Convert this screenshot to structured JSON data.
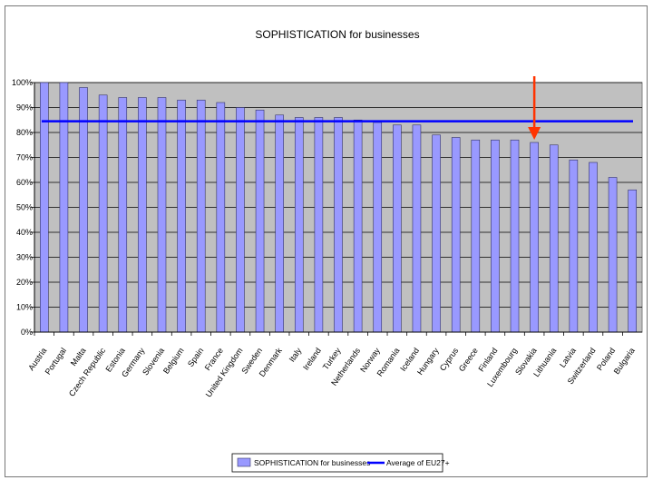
{
  "chart_data": {
    "type": "bar",
    "title": "SOPHISTICATION for businesses",
    "xlabel": "",
    "ylabel": "",
    "ylim": [
      0,
      100
    ],
    "yticks": [
      "0%",
      "10%",
      "20%",
      "30%",
      "40%",
      "50%",
      "60%",
      "70%",
      "80%",
      "90%",
      "100%"
    ],
    "grid": true,
    "legend_position": "bottom",
    "categories": [
      "Austria",
      "Portugal",
      "Malta",
      "Czech Republic",
      "Estonia",
      "Germany",
      "Slovenia",
      "Belgium",
      "Spain",
      "France",
      "United Kingdom",
      "Sweden",
      "Denmark",
      "Italy",
      "Ireland",
      "Turkey",
      "Netherlands",
      "Norway",
      "Romania",
      "Iceland",
      "Hungary",
      "Cyprus",
      "Greece",
      "Finland",
      "Luxembourg",
      "Slovakia",
      "Lithuania",
      "Latvia",
      "Switzerland",
      "Poland",
      "Bulgaria"
    ],
    "series": [
      {
        "name": "SOPHISTICATION for businesses",
        "kind": "bar",
        "color": "#9999ff",
        "values": [
          100,
          100,
          98,
          95,
          94,
          94,
          94,
          93,
          93,
          92,
          90,
          89,
          87,
          86,
          86,
          86,
          85,
          84,
          83,
          83,
          79,
          78,
          77,
          77,
          77,
          76,
          75,
          69,
          68,
          62,
          57
        ]
      },
      {
        "name": "Average of EU27+",
        "kind": "line",
        "color": "#0000ff",
        "value": 84.5
      }
    ],
    "annotation": {
      "type": "arrow",
      "target": "Slovakia",
      "color": "#ff3300"
    },
    "colors": {
      "plot_background": "#c0c0c0",
      "bar": "#9999ff",
      "bar_edge": "#333366",
      "average_line": "#0000ff",
      "arrow": "#ff3300"
    }
  }
}
